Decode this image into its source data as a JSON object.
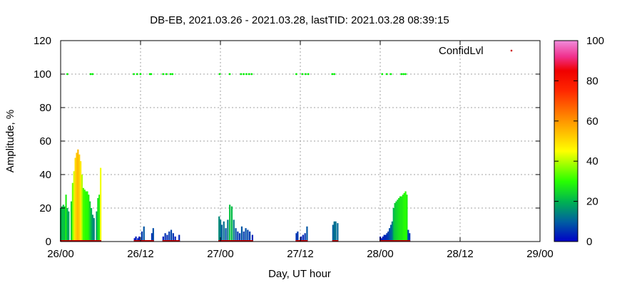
{
  "chart_data": {
    "type": "bar",
    "title": "DB-EB, 2021.03.26 - 2021.03.28, lastTID: 2021.03.28 08:39:15",
    "xlabel": "Day, UT hour",
    "ylabel": "Amplitude, %",
    "ylim": [
      0,
      120
    ],
    "xlim_hours": [
      0,
      72
    ],
    "x_ticks": [
      {
        "hour": 0,
        "label": "26/00"
      },
      {
        "hour": 12,
        "label": "26/12"
      },
      {
        "hour": 24,
        "label": "27/00"
      },
      {
        "hour": 36,
        "label": "27/12"
      },
      {
        "hour": 48,
        "label": "28/00"
      },
      {
        "hour": 60,
        "label": "28/12"
      },
      {
        "hour": 72,
        "label": "29/00"
      }
    ],
    "y_ticks": [
      0,
      20,
      40,
      60,
      80,
      100,
      120
    ],
    "grid": true,
    "legend": {
      "label": "ConfidLvl",
      "position": "top-right"
    },
    "colorbar": {
      "min": 0,
      "max": 100,
      "ticks": [
        0,
        20,
        40,
        60,
        80,
        100
      ]
    },
    "colors": {
      "confid": "#00ee00",
      "baseline": "#cc0000",
      "grid": "#a0a0a0"
    },
    "series": [
      {
        "name": "Amplitude",
        "points": [
          [
            0.0,
            20
          ],
          [
            0.2,
            21
          ],
          [
            0.4,
            22
          ],
          [
            0.6,
            21
          ],
          [
            0.8,
            28
          ],
          [
            1.0,
            20
          ],
          [
            1.2,
            18
          ],
          [
            1.6,
            24
          ],
          [
            1.8,
            35
          ],
          [
            2.0,
            42
          ],
          [
            2.2,
            50
          ],
          [
            2.4,
            53
          ],
          [
            2.6,
            55
          ],
          [
            2.8,
            52
          ],
          [
            3.0,
            48
          ],
          [
            3.2,
            40
          ],
          [
            3.4,
            32
          ],
          [
            3.6,
            31
          ],
          [
            3.8,
            30
          ],
          [
            4.0,
            30
          ],
          [
            4.2,
            28
          ],
          [
            4.4,
            24
          ],
          [
            4.6,
            20
          ],
          [
            4.8,
            16
          ],
          [
            5.0,
            14
          ],
          [
            5.4,
            18
          ],
          [
            5.6,
            26
          ],
          [
            5.8,
            28
          ],
          [
            6.0,
            44
          ],
          [
            11.1,
            2
          ],
          [
            11.3,
            3
          ],
          [
            11.6,
            2
          ],
          [
            11.8,
            3
          ],
          [
            12.2,
            6
          ],
          [
            12.5,
            9
          ],
          [
            13.7,
            5
          ],
          [
            13.9,
            8
          ],
          [
            15.4,
            3
          ],
          [
            15.7,
            5
          ],
          [
            16.0,
            4
          ],
          [
            16.3,
            6
          ],
          [
            16.6,
            7
          ],
          [
            16.9,
            5
          ],
          [
            17.2,
            3
          ],
          [
            17.8,
            4
          ],
          [
            23.8,
            15
          ],
          [
            24.0,
            13
          ],
          [
            24.2,
            10
          ],
          [
            24.5,
            12
          ],
          [
            24.8,
            8
          ],
          [
            25.1,
            13
          ],
          [
            25.4,
            22
          ],
          [
            25.7,
            21
          ],
          [
            26.0,
            13
          ],
          [
            26.3,
            8
          ],
          [
            26.6,
            6
          ],
          [
            26.9,
            5
          ],
          [
            27.2,
            9
          ],
          [
            27.5,
            6
          ],
          [
            27.8,
            8
          ],
          [
            28.1,
            7
          ],
          [
            28.4,
            6
          ],
          [
            28.8,
            4
          ],
          [
            35.4,
            5
          ],
          [
            35.6,
            6
          ],
          [
            36.1,
            3
          ],
          [
            36.4,
            4
          ],
          [
            36.7,
            5
          ],
          [
            37.0,
            9
          ],
          [
            40.9,
            10
          ],
          [
            41.1,
            12
          ],
          [
            41.3,
            12
          ],
          [
            41.6,
            11
          ],
          [
            48.0,
            3
          ],
          [
            48.2,
            2
          ],
          [
            48.4,
            3
          ],
          [
            48.6,
            4
          ],
          [
            48.8,
            4
          ],
          [
            49.0,
            5
          ],
          [
            49.2,
            6
          ],
          [
            49.4,
            8
          ],
          [
            49.6,
            10
          ],
          [
            49.8,
            12
          ],
          [
            50.0,
            20
          ],
          [
            50.2,
            23
          ],
          [
            50.4,
            24
          ],
          [
            50.6,
            25
          ],
          [
            50.8,
            26
          ],
          [
            51.0,
            27
          ],
          [
            51.2,
            27
          ],
          [
            51.4,
            28
          ],
          [
            51.6,
            29
          ],
          [
            51.8,
            30
          ],
          [
            52.0,
            28
          ],
          [
            52.2,
            7
          ],
          [
            52.4,
            5
          ]
        ]
      },
      {
        "name": "ConfidLvl",
        "hours": [
          1.0,
          4.5,
          4.8,
          11.0,
          11.5,
          12.0,
          13.4,
          13.6,
          15.4,
          15.9,
          16.5,
          16.8,
          23.9,
          25.4,
          27.1,
          27.5,
          27.9,
          28.3,
          28.7,
          35.4,
          36.3,
          36.8,
          37.2,
          40.8,
          41.1,
          48.3,
          49.0,
          49.6,
          51.2,
          51.5,
          51.8
        ],
        "value": 100
      }
    ]
  }
}
